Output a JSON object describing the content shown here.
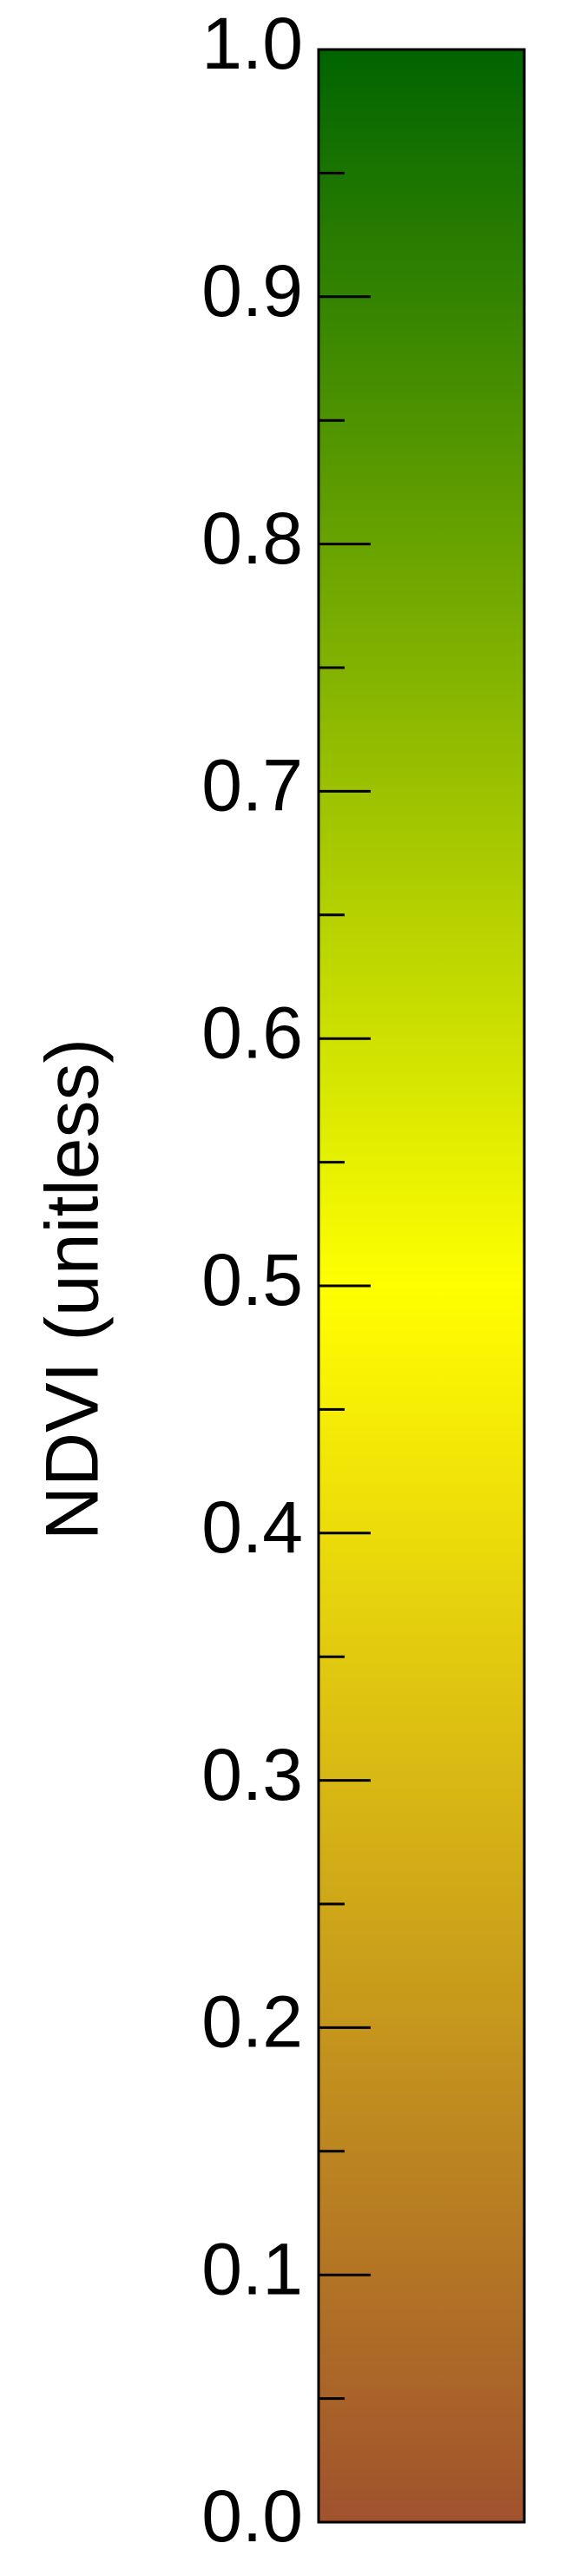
{
  "chart_data": {
    "type": "colorbar",
    "ylabel": "NDVI (unitless)",
    "ylim": [
      0.0,
      1.0
    ],
    "major_ticks": [
      0.0,
      0.1,
      0.2,
      0.3,
      0.4,
      0.5,
      0.6,
      0.7,
      0.8,
      0.9,
      1.0
    ],
    "tick_labels": [
      "0.0",
      "0.1",
      "0.2",
      "0.3",
      "0.4",
      "0.5",
      "0.6",
      "0.7",
      "0.8",
      "0.9",
      "1.0"
    ],
    "minor_ticks": [
      0.05,
      0.15,
      0.25,
      0.35,
      0.45,
      0.55,
      0.65,
      0.75,
      0.85,
      0.95
    ],
    "color_stops": [
      {
        "value": 0.0,
        "color": "#a0522d"
      },
      {
        "value": 0.3,
        "color": "#d8b814"
      },
      {
        "value": 0.5,
        "color": "#ffff00"
      },
      {
        "value": 0.7,
        "color": "#9cc200"
      },
      {
        "value": 1.0,
        "color": "#006400"
      }
    ],
    "grid": false,
    "label_position": "left"
  }
}
